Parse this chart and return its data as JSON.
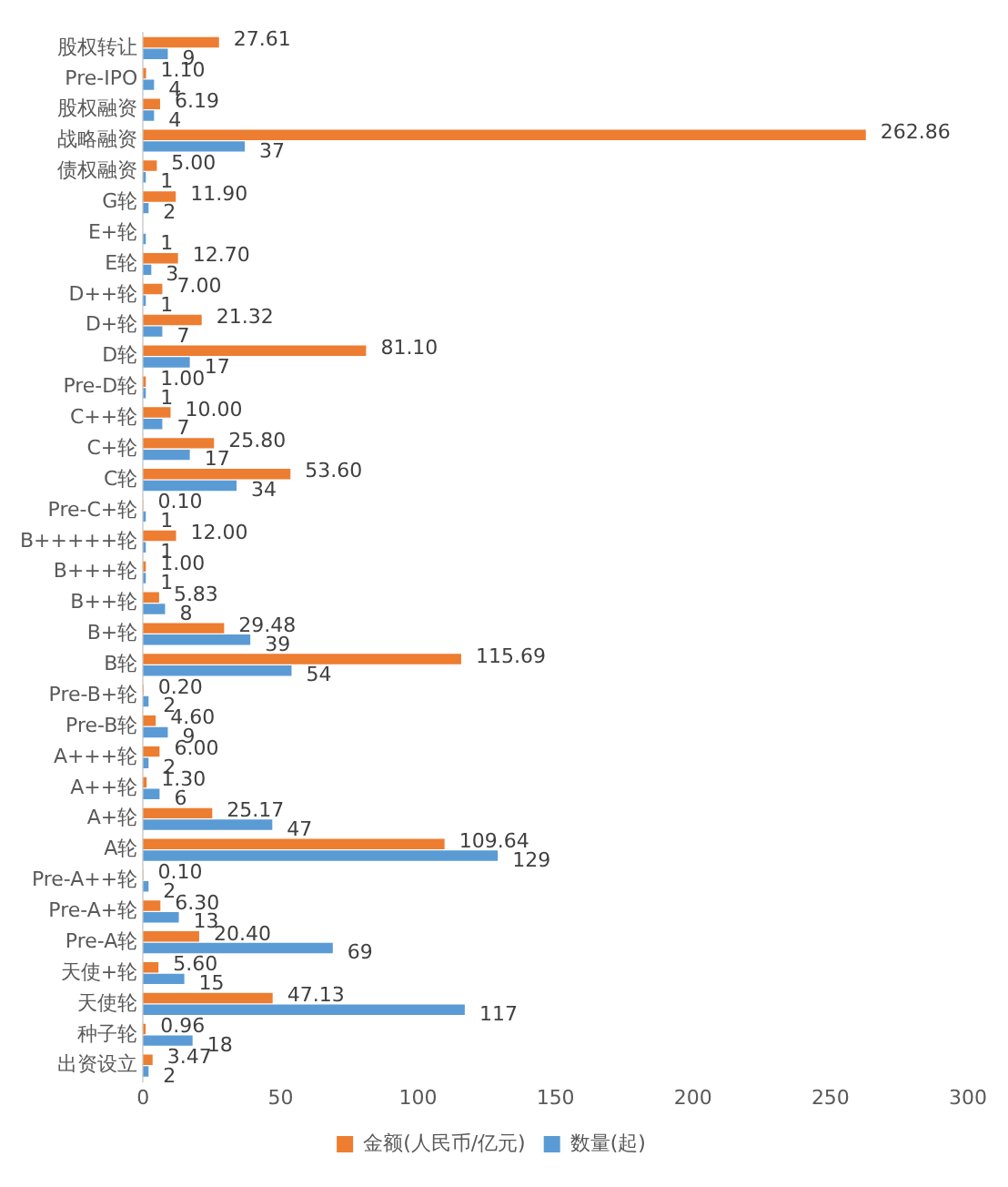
{
  "chart_data": {
    "type": "bar",
    "orientation": "horizontal",
    "categories": [
      "股权转让",
      "Pre-IPO",
      "股权融资",
      "战略融资",
      "债权融资",
      "G轮",
      "E+轮",
      "E轮",
      "D++轮",
      "D+轮",
      "D轮",
      "Pre-D轮",
      "C++轮",
      "C+轮",
      "C轮",
      "Pre-C+轮",
      "B+++++轮",
      "B+++轮",
      "B++轮",
      "B+轮",
      "B轮",
      "Pre-B+轮",
      "Pre-B轮",
      "A+++轮",
      "A++轮",
      "A+轮",
      "A轮",
      "Pre-A++轮",
      "Pre-A+轮",
      "Pre-A轮",
      "天使+轮",
      "天使轮",
      "种子轮",
      "出资设立"
    ],
    "series": [
      {
        "name": "金额(人民币/亿元)",
        "color": "#ed7d31",
        "values": [
          27.61,
          1.1,
          6.19,
          262.86,
          5.0,
          11.9,
          null,
          12.7,
          7.0,
          21.32,
          81.1,
          1.0,
          10.0,
          25.8,
          53.6,
          0.1,
          12.0,
          1.0,
          5.83,
          29.48,
          115.69,
          0.2,
          4.6,
          6.0,
          1.3,
          25.17,
          109.64,
          0.1,
          6.3,
          20.4,
          5.6,
          47.13,
          0.96,
          3.47
        ],
        "value_labels": [
          "27.61",
          "1.10",
          "6.19",
          "262.86",
          "5.00",
          "11.90",
          null,
          "12.70",
          "7.00",
          "21.32",
          "81.10",
          "1.00",
          "10.00",
          "25.80",
          "53.60",
          "0.10",
          "12.00",
          "1.00",
          "5.83",
          "29.48",
          "115.69",
          "0.20",
          "4.60",
          "6.00",
          "1.30",
          "25.17",
          "109.64",
          "0.10",
          "6.30",
          "20.40",
          "5.60",
          "47.13",
          "0.96",
          "3.47"
        ]
      },
      {
        "name": "数量(起)",
        "color": "#5b9bd5",
        "values": [
          9,
          4,
          4,
          37,
          1,
          2,
          1,
          3,
          1,
          7,
          17,
          1,
          7,
          17,
          34,
          1,
          1,
          1,
          8,
          39,
          54,
          2,
          9,
          2,
          6,
          47,
          129,
          2,
          13,
          69,
          15,
          117,
          18,
          2
        ],
        "value_labels": [
          "9",
          "4",
          "4",
          "37",
          "1",
          "2",
          "1",
          "3",
          "1",
          "7",
          "17",
          "1",
          "7",
          "17",
          "34",
          "1",
          "1",
          "1",
          "8",
          "39",
          "54",
          "2",
          "9",
          "2",
          "6",
          "47",
          "129",
          "2",
          "13",
          "69",
          "15",
          "117",
          "18",
          "2"
        ]
      }
    ],
    "xlim": [
      0,
      300
    ],
    "xticks": [
      0,
      50,
      100,
      150,
      200,
      250,
      300
    ],
    "grid": false,
    "legend": "bottom"
  }
}
